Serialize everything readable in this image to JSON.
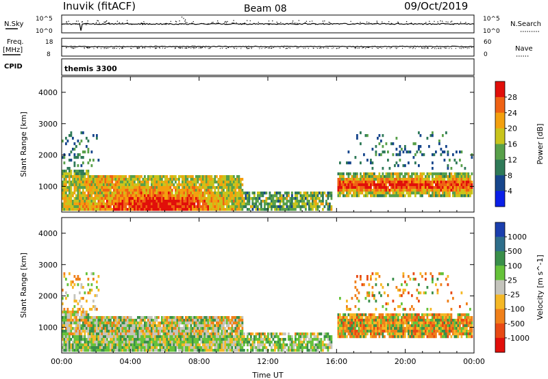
{
  "header": {
    "station": "Inuvik (fitACF)",
    "beam": "Beam 08",
    "date": "09/Oct/2019"
  },
  "meta_panels": {
    "nsky": {
      "label": "N.Sky",
      "ticks": [
        "10^5",
        "10^0"
      ],
      "right_label": "N.Search",
      "right_ticks": [
        "10^5",
        "10^0"
      ],
      "right_legend_style": "dotted"
    },
    "freq": {
      "label_line1": "Freq.",
      "label_line2": "[MHz]",
      "ticks": [
        "18",
        "8"
      ],
      "right_label": "Nave",
      "right_ticks": [
        "60",
        "0"
      ],
      "right_legend_style": "dotted"
    },
    "cpid": {
      "label": "CPID",
      "value": "themis 3300"
    }
  },
  "chart_data": [
    {
      "type": "heatmap",
      "name": "power",
      "ylabel": "Slant Range [km]",
      "xlabel": "Time UT",
      "x_tick_labels": [
        "00:00",
        "04:00",
        "08:00",
        "12:00",
        "16:00",
        "20:00",
        "00:00"
      ],
      "x_ticks_hours": [
        0,
        4,
        8,
        12,
        16,
        20,
        24
      ],
      "xlim_hours": [
        0,
        24
      ],
      "ylim": [
        180,
        4500
      ],
      "y_ticks": [
        1000,
        2000,
        3000,
        4000
      ],
      "colorbar": {
        "label": "Power [dB]",
        "tick_labels": [
          "4",
          "8",
          "12",
          "16",
          "20",
          "24",
          "28"
        ],
        "colors": [
          "#0a1fe8",
          "#17468c",
          "#2f7a58",
          "#58a04a",
          "#c9c41c",
          "#f3a00f",
          "#ef6214",
          "#e10f0a"
        ]
      }
    },
    {
      "type": "heatmap",
      "name": "velocity",
      "ylabel": "Slant Range [km]",
      "xlabel": "Time UT",
      "x_tick_labels": [
        "00:00",
        "04:00",
        "08:00",
        "12:00",
        "16:00",
        "20:00",
        "00:00"
      ],
      "x_ticks_hours": [
        0,
        4,
        8,
        12,
        16,
        20,
        24
      ],
      "xlim_hours": [
        0,
        24
      ],
      "ylim": [
        180,
        4500
      ],
      "y_ticks": [
        1000,
        2000,
        3000,
        4000
      ],
      "colorbar": {
        "label": "Velocity [m s^-1]",
        "tick_labels": [
          "1000",
          "500",
          "100",
          "25",
          "-25",
          "-100",
          "-500",
          "-1000"
        ],
        "colors": [
          "#1b3fae",
          "#2e6e8a",
          "#3a8f4a",
          "#66c23a",
          "#c4c4bc",
          "#f5b826",
          "#f0801a",
          "#e84a14",
          "#e10f0a"
        ]
      }
    }
  ],
  "axis_titles": {
    "x_bottom": "Time UT"
  }
}
